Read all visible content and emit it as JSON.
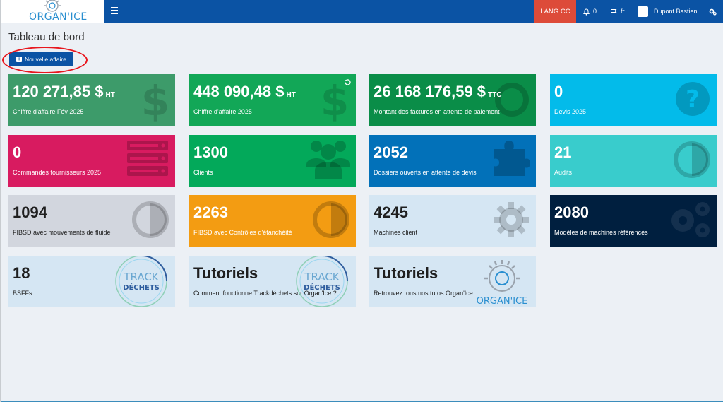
{
  "header": {
    "logo_text": "ORGAN'ICE",
    "lang_button": "LANG CC",
    "notifications_count": "0",
    "language": "fr",
    "user_name": "Dupont Bastien"
  },
  "page": {
    "title": "Tableau de bord",
    "new_button_label": "Nouvelle affaire"
  },
  "cards": [
    {
      "value": "120 271,85 $",
      "suffix": "HT",
      "label": "Chiffre d'affaire Fév 2025",
      "color": "#3d9b6a",
      "icon": "dollar-icon"
    },
    {
      "value": "448 090,48 $",
      "suffix": "HT",
      "label": "Chiffre d'affaire 2025",
      "color": "#12a757",
      "icon": "dollar-icon"
    },
    {
      "value": "26 168 176,59 $",
      "suffix": "TTC",
      "label": "Montant des factures en attente de paiement",
      "color": "#0a8d48",
      "icon": "circle-icon"
    },
    {
      "value": "0",
      "suffix": "",
      "label": "Devis 2025",
      "color": "#03bbea",
      "icon": "question-icon"
    },
    {
      "value": "0",
      "suffix": "",
      "label": "Commandes fournisseurs 2025",
      "color": "#d81b60",
      "icon": "server-icon"
    },
    {
      "value": "1300",
      "suffix": "",
      "label": "Clients",
      "color": "#03a95a",
      "icon": "users-icon"
    },
    {
      "value": "2052",
      "suffix": "",
      "label": "Dossiers ouverts en attente de devis",
      "color": "#0271b9",
      "icon": "puzzle-icon"
    },
    {
      "value": "21",
      "suffix": "",
      "label": "Audits",
      "color": "#39cccc",
      "icon": "half-circle-icon"
    },
    {
      "value": "1094",
      "suffix": "",
      "label": "FIBSD avec mouvements de fluide",
      "color": "#d2d6de",
      "icon": "half-circle-icon"
    },
    {
      "value": "2263",
      "suffix": "",
      "label": "FIBSD avec Contrôles d'étanchéité",
      "color": "#f39c12",
      "icon": "half-circle-icon"
    },
    {
      "value": "4245",
      "suffix": "",
      "label": "Machines client",
      "color": "#d5e6f3",
      "icon": "gear-icon"
    },
    {
      "value": "2080",
      "suffix": "",
      "label": "Modèles de machines référencés",
      "color": "#001f3f",
      "icon": "gears-icon"
    },
    {
      "value": "18",
      "suffix": "",
      "label": "BSFFs",
      "color": "#d5e6f3",
      "icon": "trackdechets-logo",
      "logo_line1": "TRACK",
      "logo_line2": "DÉCHETS"
    },
    {
      "value": "Tutoriels",
      "suffix": "",
      "label": "Comment fonctionne Trackdéchets sur Organ'Ice ?",
      "color": "#d5e6f3",
      "icon": "trackdechets-logo",
      "logo_line1": "TRACK",
      "logo_line2": "DÉCHETS"
    },
    {
      "value": "Tutoriels",
      "suffix": "",
      "label": "Retrouvez tous nos tutos Organ'Ice",
      "color": "#d5e6f3",
      "icon": "organice-logo",
      "logo_text": "ORGAN'ICE"
    }
  ]
}
